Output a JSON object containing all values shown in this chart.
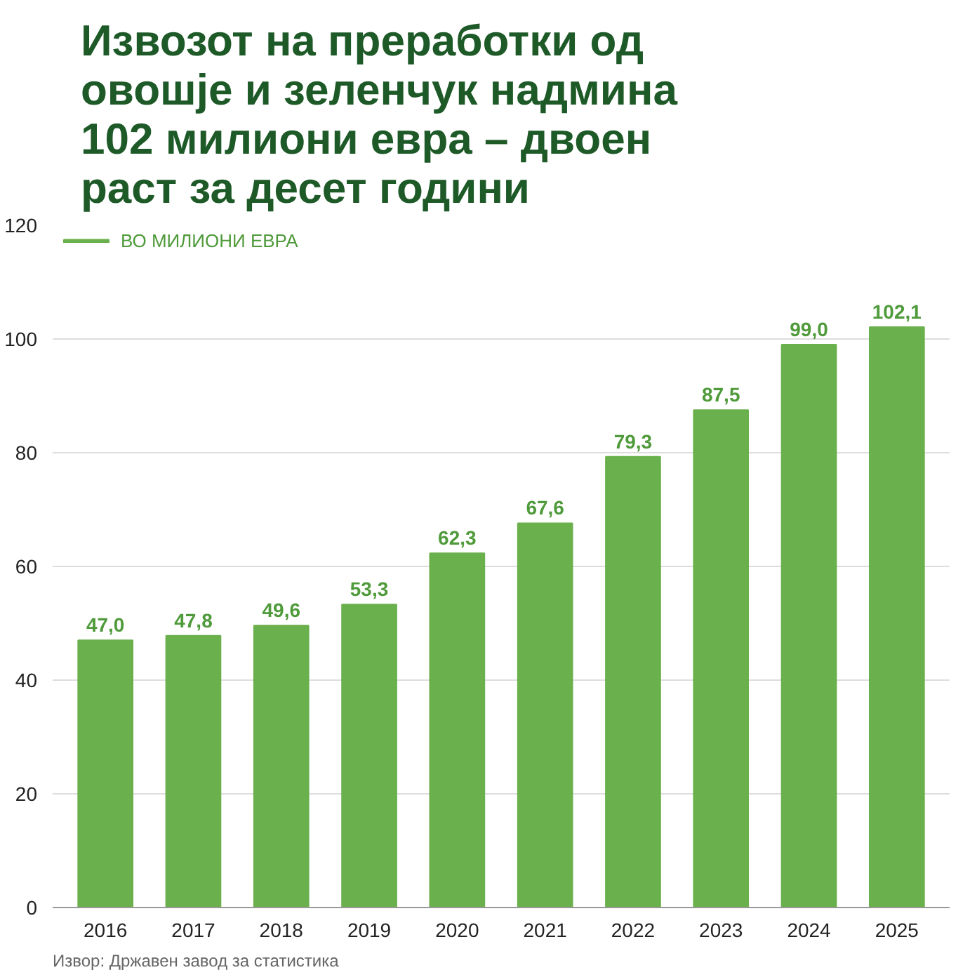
{
  "chart_data": {
    "type": "bar",
    "title": "Извозот на преработки од овошје и зеленчук надмина 102 милиони евра – двоен раст за десет години",
    "categories": [
      "2016",
      "2017",
      "2018",
      "2019",
      "2020",
      "2021",
      "2022",
      "2023",
      "2024",
      "2025"
    ],
    "series": [
      {
        "name": "ВО МИЛИОНИ ЕВРА",
        "color": "#6ab04c",
        "values": [
          47.0,
          47.8,
          49.6,
          53.3,
          62.3,
          67.6,
          79.3,
          87.5,
          99.0,
          102.1
        ],
        "value_labels": [
          "47,0",
          "47,8",
          "49,6",
          "53,3",
          "62,3",
          "67,6",
          "79,3",
          "87,5",
          "99,0",
          "102,1"
        ]
      }
    ],
    "ylim": [
      0,
      120
    ],
    "yticks": [
      0,
      20,
      40,
      60,
      80,
      100,
      120
    ],
    "grid": "y",
    "legend": "top left",
    "annotations": [
      "Извор: Државен завод за статистика"
    ]
  }
}
